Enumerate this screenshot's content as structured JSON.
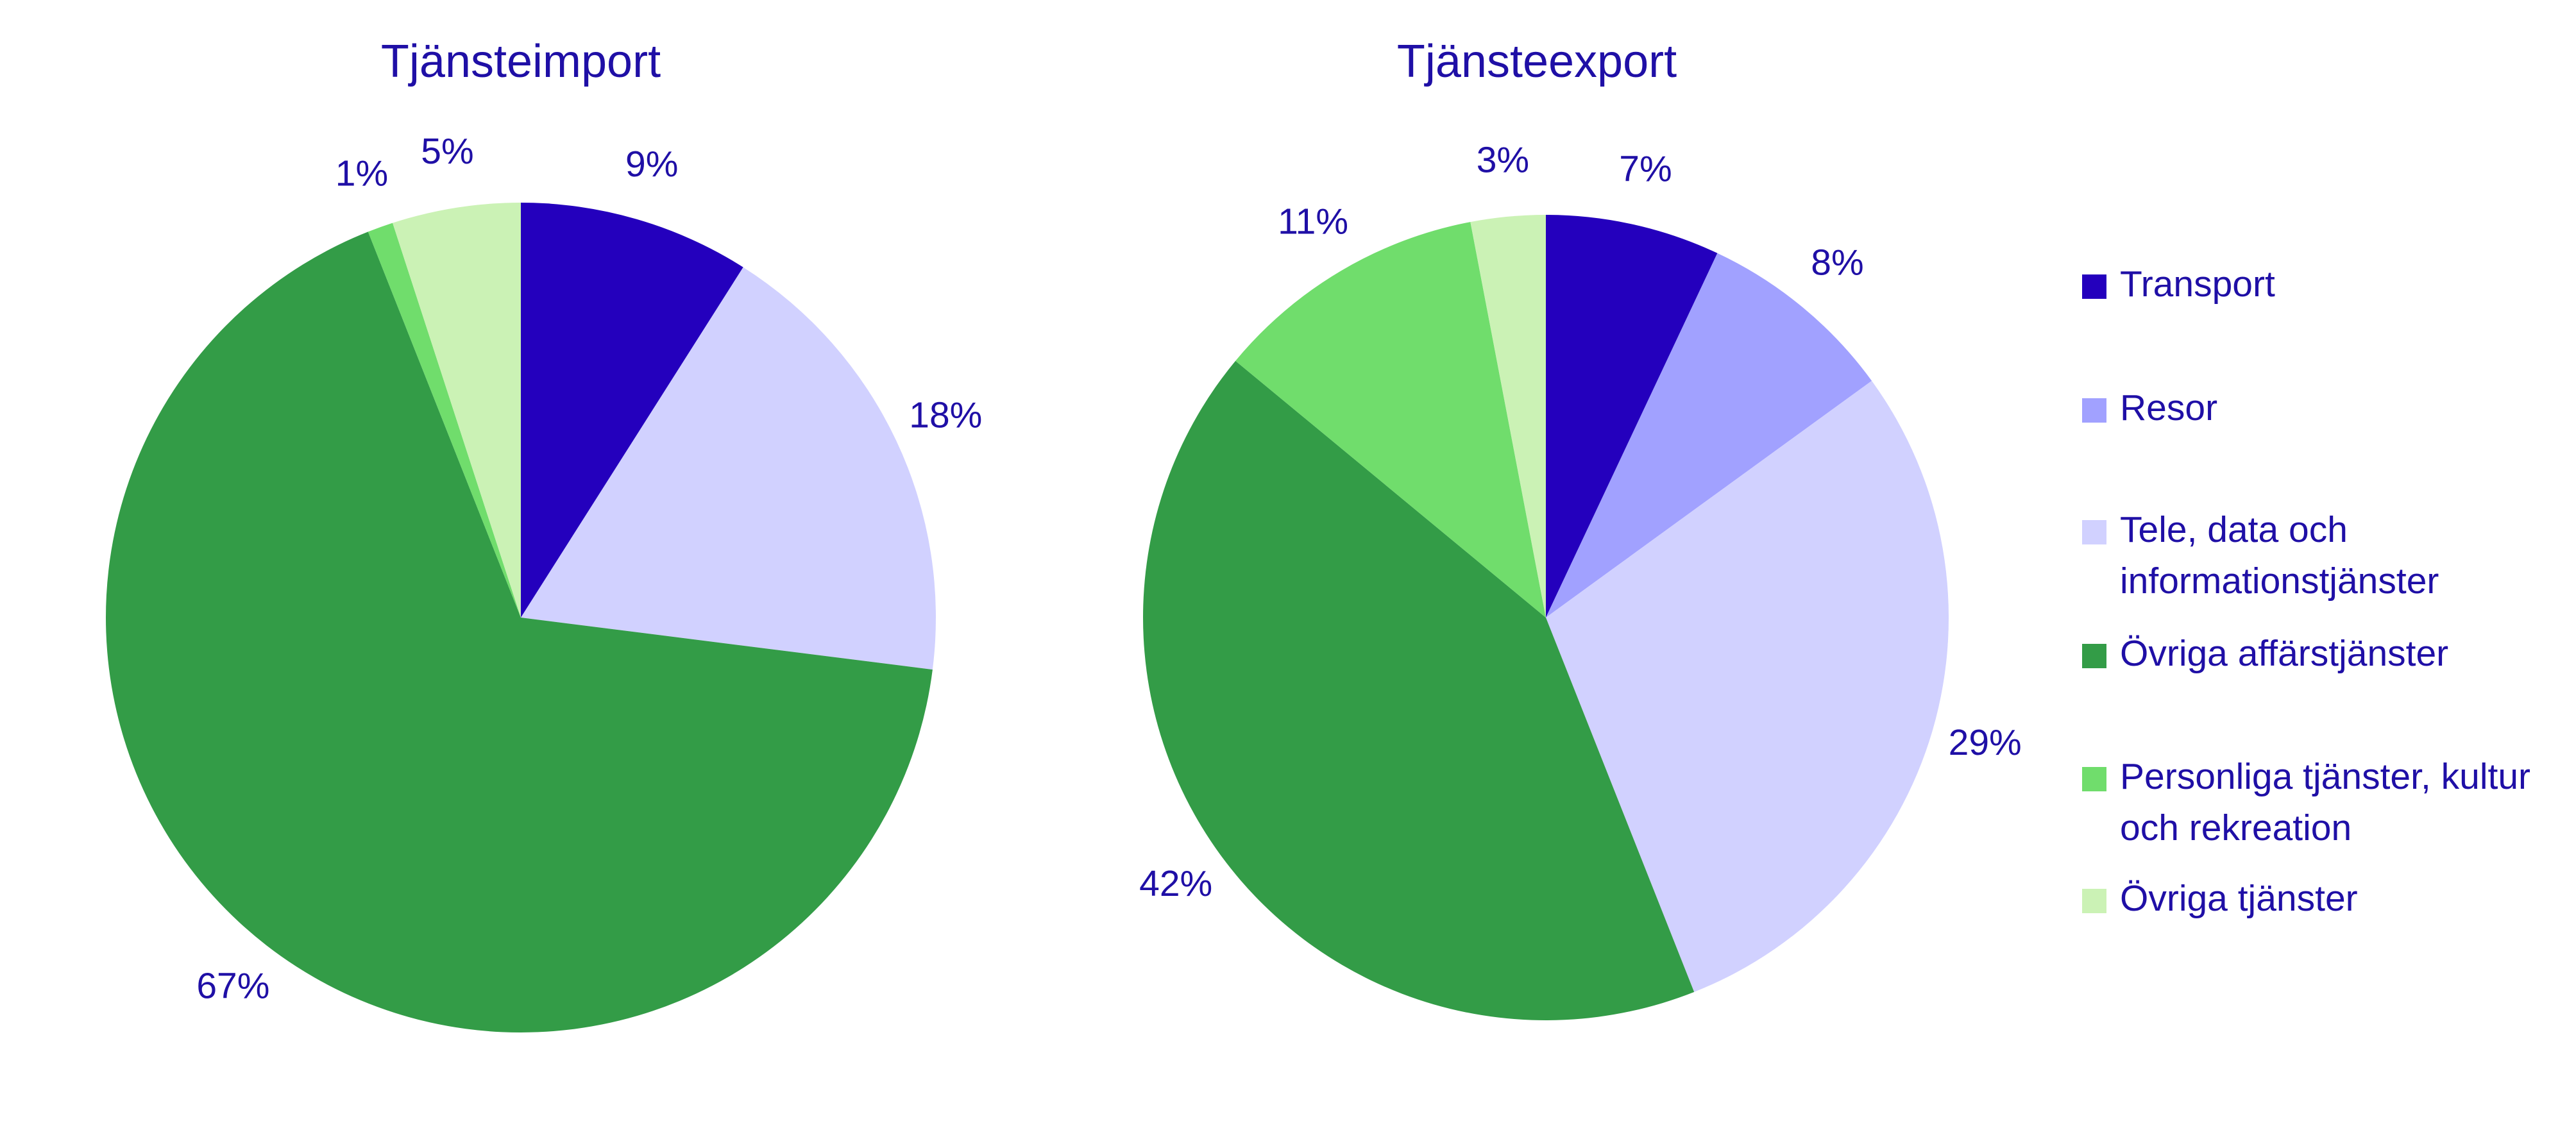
{
  "colors": {
    "text": "#1f0fa6",
    "Transport": "#2400bd",
    "Resor": "#a1a1ff",
    "Tele": "#d1d1ff",
    "OvrigaAffar": "#339c47",
    "Personliga": "#70dd6c",
    "OvrigaTjanster": "#cbf2b5"
  },
  "chart_data": [
    {
      "type": "pie",
      "title": "Tjänsteimport",
      "slices": [
        {
          "category": "Transport",
          "value": 9,
          "label": "9%",
          "color_key": "Transport"
        },
        {
          "category": "Tele, data och informationstjänster",
          "value": 18,
          "label": "18%",
          "color_key": "Tele"
        },
        {
          "category": "Övriga affärstjänster",
          "value": 67,
          "label": "67%",
          "color_key": "OvrigaAffar"
        },
        {
          "category": "Personliga tjänster, kultur och rekreation",
          "value": 1,
          "label": "1%",
          "color_key": "Personliga"
        },
        {
          "category": "Övriga tjänster",
          "value": 5,
          "label": "5%",
          "color_key": "OvrigaTjanster"
        }
      ]
    },
    {
      "type": "pie",
      "title": "Tjänsteexport",
      "slices": [
        {
          "category": "Transport",
          "value": 7,
          "label": "7%",
          "color_key": "Transport"
        },
        {
          "category": "Resor",
          "value": 8,
          "label": "8%",
          "color_key": "Resor"
        },
        {
          "category": "Tele, data och informationstjänster",
          "value": 29,
          "label": "29%",
          "color_key": "Tele"
        },
        {
          "category": "Övriga affärstjänster",
          "value": 42,
          "label": "42%",
          "color_key": "OvrigaAffar"
        },
        {
          "category": "Personliga tjänster, kultur och rekreation",
          "value": 11,
          "label": "11%",
          "color_key": "Personliga"
        },
        {
          "category": "Övriga tjänster",
          "value": 3,
          "label": "3%",
          "color_key": "OvrigaTjanster"
        }
      ]
    }
  ],
  "legend": {
    "position": "right",
    "items": [
      {
        "lines": [
          "Transport"
        ],
        "color_key": "Transport"
      },
      {
        "lines": [
          "Resor"
        ],
        "color_key": "Resor"
      },
      {
        "lines": [
          "Tele, data och",
          "informationstjänster"
        ],
        "color_key": "Tele"
      },
      {
        "lines": [
          "Övriga affärstjänster"
        ],
        "color_key": "OvrigaAffar"
      },
      {
        "lines": [
          "Personliga tjänster, kultur",
          "och rekreation"
        ],
        "color_key": "Personliga"
      },
      {
        "lines": [
          "Övriga tjänster"
        ],
        "color_key": "OvrigaTjanster"
      }
    ]
  }
}
